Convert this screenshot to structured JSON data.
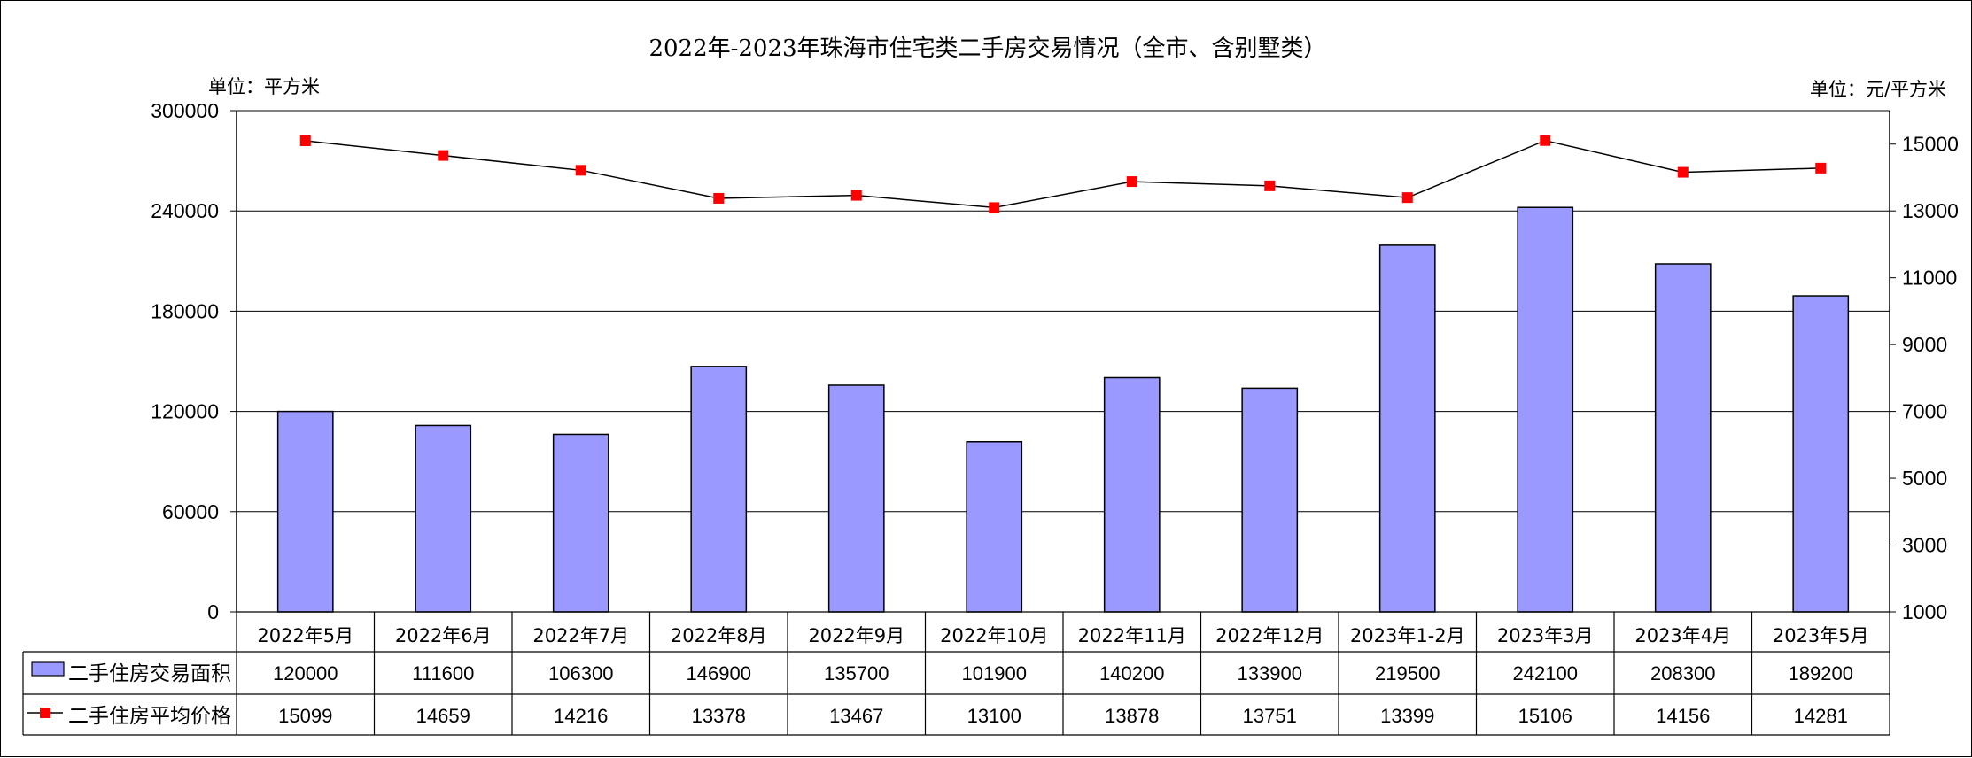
{
  "chart_data": {
    "type": "bar+line",
    "title": "2022年-2023年珠海市住宅类二手房交易情况（全市、含别墅类）",
    "left_unit": "单位：平方米",
    "right_unit": "单位：元/平方米",
    "categories": [
      "2022年5月",
      "2022年6月",
      "2022年7月",
      "2022年8月",
      "2022年9月",
      "2022年10月",
      "2022年11月",
      "2022年12月",
      "2023年1-2月",
      "2023年3月",
      "2023年4月",
      "2023年5月"
    ],
    "series": [
      {
        "name": "二手住房交易面积",
        "type": "bar",
        "axis": "left",
        "color": "#9999ff",
        "values": [
          120000,
          111600,
          106300,
          146900,
          135700,
          101900,
          140200,
          133900,
          219500,
          242100,
          208300,
          189200
        ]
      },
      {
        "name": "二手住房平均价格",
        "type": "line",
        "axis": "right",
        "color": "#ff0000",
        "values": [
          15099,
          14659,
          14216,
          13378,
          13467,
          13100,
          13878,
          13751,
          13399,
          15106,
          14156,
          14281
        ]
      }
    ],
    "left_axis": {
      "min": 0,
      "max": 300000,
      "ticks": [
        "0",
        "60000",
        "120000",
        "180000",
        "240000",
        "300000"
      ]
    },
    "right_axis": {
      "min": 1000,
      "max": 16000,
      "ticks": [
        "1000",
        "3000",
        "5000",
        "7000",
        "9000",
        "11000",
        "13000",
        "15000"
      ]
    },
    "grid": true,
    "legend": "data-table"
  }
}
